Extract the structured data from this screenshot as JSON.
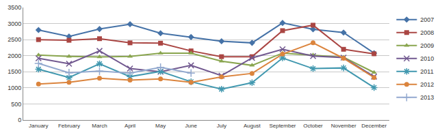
{
  "chart_data": {
    "type": "line",
    "categories": [
      "January",
      "February",
      "March",
      "April",
      "May",
      "June",
      "July",
      "August",
      "September",
      "October",
      "November",
      "December"
    ],
    "series": [
      {
        "name": "2007",
        "color": "#4572A7",
        "marker": "diamond",
        "values": [
          2800,
          2600,
          2830,
          2980,
          2700,
          2580,
          2450,
          2400,
          3020,
          2820,
          2720,
          2080
        ]
      },
      {
        "name": "2008",
        "color": "#AA4643",
        "marker": "square",
        "values": [
          2500,
          2480,
          2530,
          2400,
          2390,
          2150,
          1970,
          1970,
          2780,
          2950,
          2200,
          2060
        ]
      },
      {
        "name": "2009",
        "color": "#89A54E",
        "marker": "triangle",
        "values": [
          2020,
          1980,
          1960,
          1980,
          2080,
          2080,
          1830,
          1700,
          2080,
          2020,
          1950,
          1480
        ]
      },
      {
        "name": "2010",
        "color": "#71588F",
        "marker": "x",
        "values": [
          1920,
          1750,
          2150,
          1600,
          1500,
          1700,
          1380,
          1930,
          2200,
          1990,
          1940,
          1350
        ]
      },
      {
        "name": "2011",
        "color": "#4198AF",
        "marker": "star",
        "values": [
          1580,
          1320,
          1750,
          1350,
          1510,
          1190,
          960,
          1160,
          1930,
          1600,
          1620,
          1010
        ]
      },
      {
        "name": "2012",
        "color": "#DB843D",
        "marker": "circle",
        "values": [
          1120,
          1170,
          1300,
          1240,
          1280,
          1170,
          1340,
          1450,
          2050,
          2400,
          1920,
          1320
        ]
      },
      {
        "name": "2013",
        "color": "#93A9CF",
        "marker": "plus",
        "values": [
          1760,
          1470,
          1520,
          1460,
          1640,
          1460,
          null,
          null,
          null,
          null,
          null,
          null
        ]
      }
    ],
    "ylim": [
      0,
      3500
    ],
    "yticks": [
      0,
      500,
      1000,
      1500,
      2000,
      2500,
      3000,
      3500
    ],
    "grid": true,
    "legend": "right"
  }
}
